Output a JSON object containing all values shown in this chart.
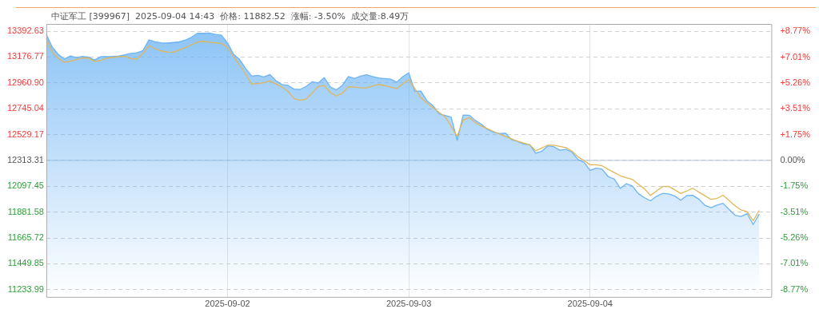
{
  "chart_data": {
    "type": "area",
    "title": "中证军工 [399967]  2025-09-04 14:43  价格: 11882.52  涨幅: -3.50%  成交量:8.49万",
    "categories": [
      null,
      null,
      null,
      null,
      null,
      null,
      null,
      null,
      null,
      null,
      null,
      null,
      null,
      null,
      null,
      null,
      null,
      null,
      null,
      null,
      null,
      null,
      null,
      null,
      null,
      null,
      null,
      null,
      null,
      null,
      "2025-09-02",
      null,
      null,
      null,
      null,
      null,
      null,
      null,
      null,
      null,
      null,
      null,
      null,
      null,
      null,
      null,
      null,
      null,
      null,
      null,
      null,
      null,
      null,
      null,
      null,
      null,
      null,
      null,
      null,
      null,
      "2025-09-03",
      null,
      null,
      null,
      null,
      null,
      null,
      null,
      null,
      null,
      null,
      null,
      null,
      null,
      null,
      null,
      null,
      null,
      null,
      null,
      null,
      null,
      null,
      null,
      null,
      null,
      null,
      null,
      null,
      null,
      "2025-09-04",
      null,
      null,
      null,
      null,
      null,
      null,
      null,
      null,
      null,
      null,
      null,
      null,
      null,
      null,
      null,
      null,
      null,
      null,
      null,
      null,
      null,
      null,
      null,
      null,
      null,
      null,
      null,
      null,
      null,
      null
    ],
    "ylim": [
      11174,
      13453
    ],
    "yticks": [
      13392.63,
      13176.77,
      {
        "value": 12960.9,
        "label": "12960.90"
      },
      12745.04,
      12529.17,
      12313.31,
      12097.45,
      11881.58,
      11665.72,
      11449.85,
      11233.99
    ],
    "y2lim": [
      -9.26,
      9.26
    ],
    "y2ticks": [
      {
        "value": 8.77,
        "label": "+8.77%"
      },
      {
        "value": 7.01,
        "label": "+7.01%"
      },
      {
        "value": 5.26,
        "label": "+5.26%"
      },
      {
        "value": 3.51,
        "label": "+3.51%"
      },
      {
        "value": 1.75,
        "label": "+1.75%"
      },
      {
        "value": 0,
        "label": "0.00%"
      },
      {
        "value": -1.75,
        "label": "-1.75%"
      },
      {
        "value": -3.51,
        "label": "-3.51%"
      },
      {
        "value": -5.26,
        "label": "-5.26%"
      },
      {
        "value": -7.01,
        "label": "-7.01%"
      },
      {
        "value": -8.77,
        "label": "-8.77%"
      }
    ],
    "ref_lines": [
      {
        "axis": "y",
        "value": 12313.31,
        "color": "#b4c4d4"
      }
    ],
    "grid": true,
    "series": [
      {
        "color": "#6cb3f4",
        "values": [
          13366,
          13258,
          13198,
          13160,
          13185,
          13172,
          13182,
          13175,
          13152,
          13180,
          13181,
          13182,
          13186,
          13196,
          13207,
          13212,
          13231,
          13321,
          13304,
          13296,
          13293,
          13298,
          13303,
          13318,
          13341,
          13375,
          13376,
          13377,
          13365,
          13359,
          13294,
          13200,
          13156,
          13080,
          13017,
          13024,
          13010,
          13031,
          12980,
          12947,
          12940,
          12909,
          12906,
          12931,
          12970,
          12960,
          13005,
          12928,
          12903,
          12940,
          13014,
          12998,
          13017,
          13029,
          13013,
          13002,
          12997,
          12992,
          12967,
          13013,
          13045,
          12890,
          12892,
          12811,
          12771,
          12703,
          12689,
          12675,
          12481,
          12692,
          12691,
          12647,
          12616,
          12573,
          12548,
          12538,
          12541,
          12487,
          12474,
          12450,
          12446,
          12374,
          12390,
          12435,
          12428,
          12399,
          12406,
          12383,
          12320,
          12299,
          12230,
          12248,
          12240,
          12178,
          12158,
          12080,
          12119,
          12100,
          12035,
          12003,
          11976,
          12014,
          12038,
          12033,
          12017,
          11981,
          12020,
          12022,
          11990,
          11939,
          11918,
          11940,
          11955,
          11904,
          11856,
          11845,
          11868,
          11778,
          11866,
          null,
          null
        ]
      },
      {
        "type": "line",
        "color": "#e0b65a",
        "values": [
          13332,
          13215,
          13163,
          13134,
          13142,
          13155,
          13169,
          13168,
          13140,
          13148,
          13167,
          13173,
          13180,
          13182,
          13164,
          13160,
          13206,
          13273,
          13246,
          13228,
          13219,
          13217,
          13235,
          13255,
          13278,
          13301,
          13308,
          13301,
          13296,
          13289,
          13257,
          13178,
          13108,
          13033,
          12950,
          12956,
          12962,
          12977,
          12952,
          12926,
          12890,
          12830,
          12816,
          12826,
          12875,
          12931,
          12939,
          12881,
          12851,
          12875,
          12929,
          12925,
          12921,
          12919,
          12934,
          12948,
          12938,
          12925,
          12913,
          12953,
          12988,
          12914,
          12836,
          12793,
          12754,
          12715,
          12678,
          12599,
          12514,
          12650,
          12671,
          12630,
          12601,
          12579,
          12556,
          12534,
          12514,
          12494,
          12474,
          12459,
          12444,
          12394,
          12417,
          12441,
          12440,
          12430,
          12420,
          12391,
          12344,
          12313,
          12277,
          12277,
          12268,
          12239,
          12212,
          12186,
          12168,
          12155,
          12115,
          12077,
          12021,
          12058,
          12095,
          12097,
          12069,
          12037,
          12058,
          12081,
          12049,
          12019,
          11988,
          11996,
          12023,
          11979,
          11934,
          11900,
          11885,
          11810,
          11896,
          null,
          null
        ]
      }
    ]
  }
}
